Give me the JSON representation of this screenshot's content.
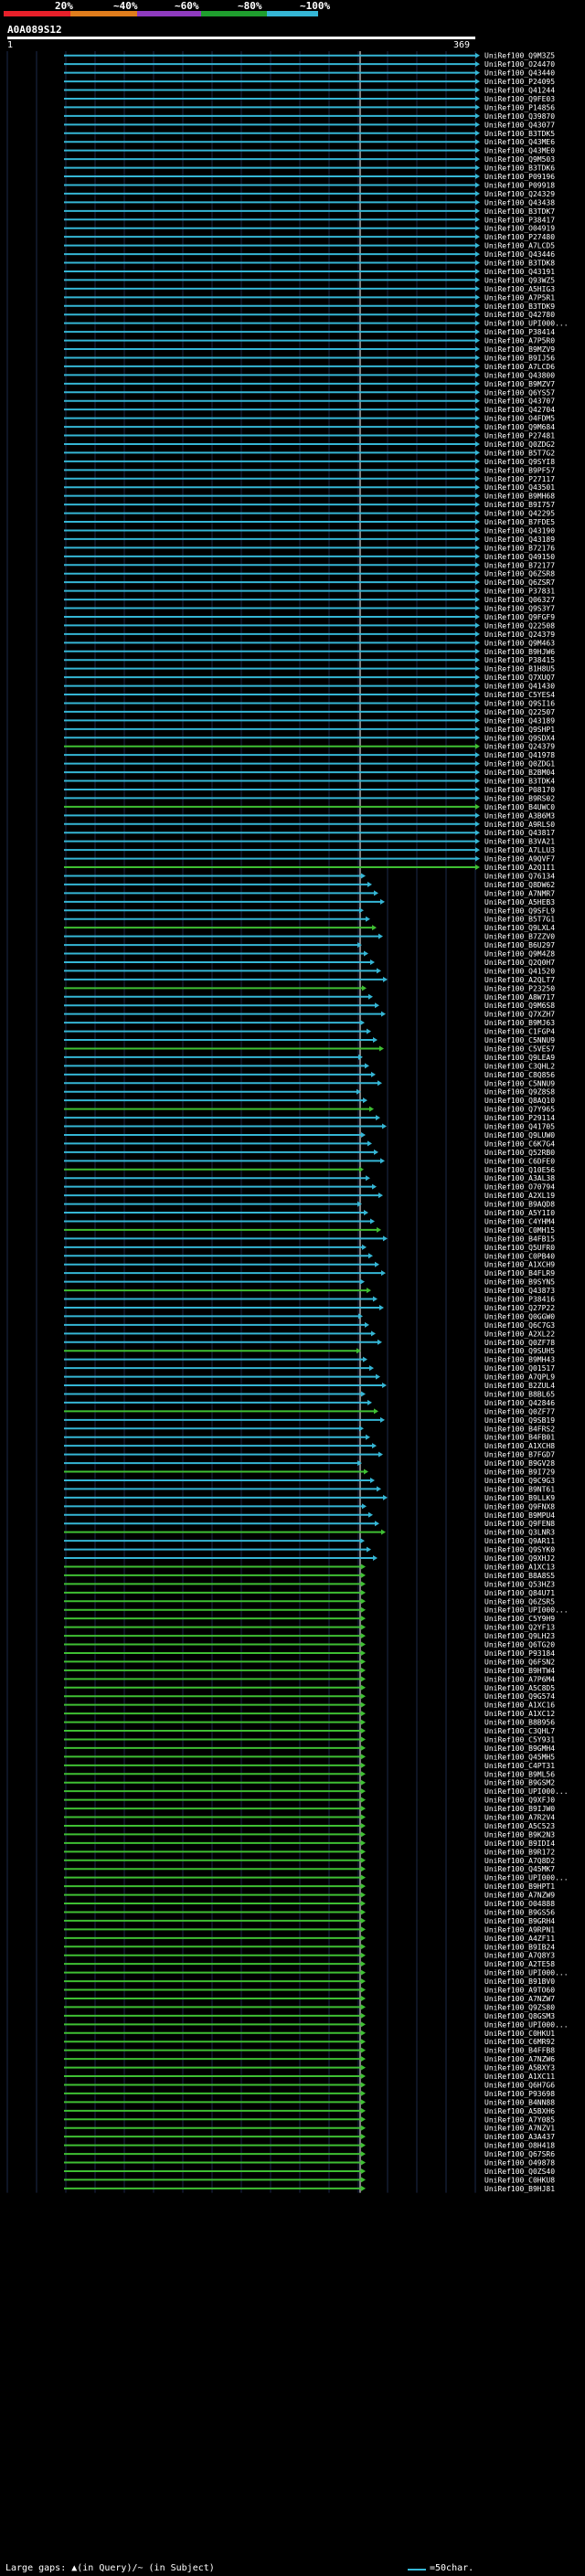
{
  "percent_labels": [
    "20%",
    "~40%",
    "~60%",
    "~80%",
    "~100%"
  ],
  "identity_colors": [
    "#e8202a",
    "#e07d1c",
    "#8f3bbf",
    "#1f9e2e",
    "#35b6d5"
  ],
  "query": {
    "id": "A0A089S12",
    "start_tick": "1",
    "end_tick": "369"
  },
  "hit_color_blue": "#35b6d5",
  "hit_color_green": "#3fbf33",
  "hits": [
    "UniRef100_Q9M3Z5",
    "UniRef100_O24470",
    "UniRef100_Q43440",
    "UniRef100_P24095",
    "UniRef100_Q41244",
    "UniRef100_Q9FE03",
    "UniRef100_P14856",
    "UniRef100_Q39870",
    "UniRef100_Q43077",
    "UniRef100_B3TDK5",
    "UniRef100_Q43ME6",
    "UniRef100_Q43ME0",
    "UniRef100_Q9M503",
    "UniRef100_B3TDK6",
    "UniRef100_P09196",
    "UniRef100_P09918",
    "UniRef100_Q24329",
    "UniRef100_Q43438",
    "UniRef100_B3TDK7",
    "UniRef100_P38417",
    "UniRef100_O04919",
    "UniRef100_P27480",
    "UniRef100_A7LCD5",
    "UniRef100_Q43446",
    "UniRef100_B3TDK8",
    "UniRef100_Q43191",
    "UniRef100_Q93WZ5",
    "UniRef100_A5HIG3",
    "UniRef100_A7P5R1",
    "UniRef100_B3TDK9",
    "UniRef100_Q42780",
    "UniRef100_UPI000...",
    "UniRef100_P38414",
    "UniRef100_A7P5R0",
    "UniRef100_B9MZV9",
    "UniRef100_B9IJ56",
    "UniRef100_A7LCD6",
    "UniRef100_Q43800",
    "UniRef100_B9MZV7",
    "UniRef100_Q6YS57",
    "UniRef100_Q43707",
    "UniRef100_Q42704",
    "UniRef100_O4FDM5",
    "UniRef100_Q9M684",
    "UniRef100_P27481",
    "UniRef100_Q0ZDG2",
    "UniRef100_B5T7G2",
    "UniRef100_Q9SYI8",
    "UniRef100_B9PF57",
    "UniRef100_P27117",
    "UniRef100_Q43501",
    "UniRef100_B9MH68",
    "UniRef100_B9I757",
    "UniRef100_Q42295",
    "UniRef100_B7FDE5",
    "UniRef100_Q43190",
    "UniRef100_Q43189",
    "UniRef100_B72176",
    "UniRef100_Q49150",
    "UniRef100_B72177",
    "UniRef100_Q6ZSR8",
    "UniRef100_Q6ZSR7",
    "UniRef100_P37831",
    "UniRef100_Q06327",
    "UniRef100_Q9S3Y7",
    "UniRef100_Q9FGF9",
    "UniRef100_Q22508",
    "UniRef100_Q24379",
    "UniRef100_Q9M463",
    "UniRef100_B9HJW6",
    "UniRef100_P38415",
    "UniRef100_B1H8U5",
    "UniRef100_Q7XUQ7",
    "UniRef100_Q41430",
    "UniRef100_C5YES4",
    "UniRef100_Q9SI16",
    "UniRef100_Q22507",
    "UniRef100_Q43189",
    "UniRef100_Q9SHP1",
    "UniRef100_Q9SDX4",
    "UniRef100_Q24379",
    "UniRef100_Q41978",
    "UniRef100_Q0ZDG1",
    "UniRef100_B2BM04",
    "UniRef100_B3TDK4",
    "UniRef100_P08170",
    "UniRef100_B9RS02",
    "UniRef100_B4UWC0",
    "UniRef100_A3B6M3",
    "UniRef100_A9RLS0",
    "UniRef100_Q43817",
    "UniRef100_B3VA21",
    "UniRef100_A7LLU3",
    "UniRef100_A9QVF7",
    "UniRef100_A2Q1I1",
    "UniRef100_Q76134",
    "UniRef100_Q8DW62",
    "UniRef100_A7NMR7",
    "UniRef100_A5HEB3",
    "UniRef100_Q9SFL9",
    "UniRef100_B5T7G1",
    "UniRef100_Q9LXL4",
    "UniRef100_B7ZZV0",
    "UniRef100_B6U297",
    "UniRef100_Q9M4Z8",
    "UniRef100_Q2Q0H7",
    "UniRef100_Q41520",
    "UniRef100_A2QLT7",
    "UniRef100_P23250",
    "UniRef100_A8W717",
    "UniRef100_Q9M6S8",
    "UniRef100_Q7XZH7",
    "UniRef100_B9MJ63",
    "UniRef100_C1FGP4",
    "UniRef100_C5NNU9",
    "UniRef100_C5VES7",
    "UniRef100_Q9LEA9",
    "UniRef100_C3QHL2",
    "UniRef100_C8Q856",
    "UniRef100_C5NNU9",
    "UniRef100_Q9Z8S8",
    "UniRef100_Q8AQ10",
    "UniRef100_Q7Y965",
    "UniRef100_P29114",
    "UniRef100_Q41705",
    "UniRef100_Q9LUW0",
    "UniRef100_C6K7G4",
    "UniRef100_Q52RB0",
    "UniRef100_C6DFE0",
    "UniRef100_Q10E56",
    "UniRef100_A3AL38",
    "UniRef100_O70794",
    "UniRef100_A2XL19",
    "UniRef100_B9AQD8",
    "UniRef100_A5Y1I0",
    "UniRef100_C4YHM4",
    "UniRef100_C0MH15",
    "UniRef100_B4FB15",
    "UniRef100_Q5UFR0",
    "UniRef100_C0PB40",
    "UniRef100_A1XCH9",
    "UniRef100_B4FLR9",
    "UniRef100_B9SYN5",
    "UniRef100_Q43873",
    "UniRef100_P38416",
    "UniRef100_Q27P22",
    "UniRef100_Q0GGW0",
    "UniRef100_Q6C7G3",
    "UniRef100_A2XL22",
    "UniRef100_Q0ZF78",
    "UniRef100_Q9SUH5",
    "UniRef100_B9MH43",
    "UniRef100_Q01517",
    "UniRef100_A7QPL9",
    "UniRef100_B2ZUL4",
    "UniRef100_B8BL65",
    "UniRef100_Q42846",
    "UniRef100_Q0ZF77",
    "UniRef100_Q9SB19",
    "UniRef100_B4FRS2",
    "UniRef100_B4FB01",
    "UniRef100_A1XCH8",
    "UniRef100_B7FGD7",
    "UniRef100_B9GV28",
    "UniRef100_B9I729",
    "UniRef100_Q9C9G3",
    "UniRef100_B9NT61",
    "UniRef100_B9LLK9",
    "UniRef100_Q9FNX8",
    "UniRef100_B9MPU4",
    "UniRef100_Q9FEN8",
    "UniRef100_Q3LNR3",
    "UniRef100_Q9AR11",
    "UniRef100_Q9SYK0",
    "UniRef100_Q9XHJ2",
    "UniRef100_A1XC13",
    "UniRef100_B8A8S5",
    "UniRef100_Q53HZ3",
    "UniRef100_Q84U71",
    "UniRef100_Q6ZSR5",
    "UniRef100_UPI000...",
    "UniRef100_C5Y9H9",
    "UniRef100_Q2YF13",
    "UniRef100_Q9LH23",
    "UniRef100_Q6TG20",
    "UniRef100_P93184",
    "UniRef100_Q6FSN2",
    "UniRef100_B9HTW4",
    "UniRef100_A7P6M4",
    "UniRef100_A5C8D5",
    "UniRef100_Q9G574",
    "UniRef100_A1XC16",
    "UniRef100_A1XC12",
    "UniRef100_B8B956",
    "UniRef100_C3QHL7",
    "UniRef100_C5Y931",
    "UniRef100_B9GMH4",
    "UniRef100_Q45MH5",
    "UniRef100_C4PT31",
    "UniRef100_B9ML56",
    "UniRef100_B9GSM2",
    "UniRef100_UPI000...",
    "UniRef100_Q9XFJ0",
    "UniRef100_B9IJW0",
    "UniRef100_A7R2V4",
    "UniRef100_A5C523",
    "UniRef100_B9K2N3",
    "UniRef100_B9IDI4",
    "UniRef100_B9R172",
    "UniRef100_A7Q8D2",
    "UniRef100_Q45MK7",
    "UniRef100_UPI000...",
    "UniRef100_B9HPT1",
    "UniRef100_A7NZW9",
    "UniRef100_O04888",
    "UniRef100_B9GS56",
    "UniRef100_B9GRH4",
    "UniRef100_A9RPN1",
    "UniRef100_A4ZF11",
    "UniRef100_B9IB24",
    "UniRef100_A7Q8Y3",
    "UniRef100_A2TE58",
    "UniRef100_UPI000...",
    "UniRef100_B91BV0",
    "UniRef100_A9TO60",
    "UniRef100_A7NZW7",
    "UniRef100_Q9ZS80",
    "UniRef100_Q8GSM3",
    "UniRef100_UPI000...",
    "UniRef100_C0HKU1",
    "UniRef100_C6MR92",
    "UniRef100_B4FFB8",
    "UniRef100_A7NZW6",
    "UniRef100_A5BXY3",
    "UniRef100_A1XC11",
    "UniRef100_Q6H7G6",
    "UniRef100_P93698",
    "UniRef100_B4NN88",
    "UniRef100_A5BXH6",
    "UniRef100_A7Y085",
    "UniRef100_A7NZV1",
    "UniRef100_A3A437",
    "UniRef100_O8H418",
    "UniRef100_Q67SR6",
    "UniRef100_O49878",
    "UniRef100_Q0ZS40",
    "UniRef100_C0HKU8",
    "UniRef100_B9HJ81"
  ],
  "footer": {
    "left_text": "Large gaps: ▲(in Query)/~ (in Subject)",
    "right_text": "=50char."
  }
}
